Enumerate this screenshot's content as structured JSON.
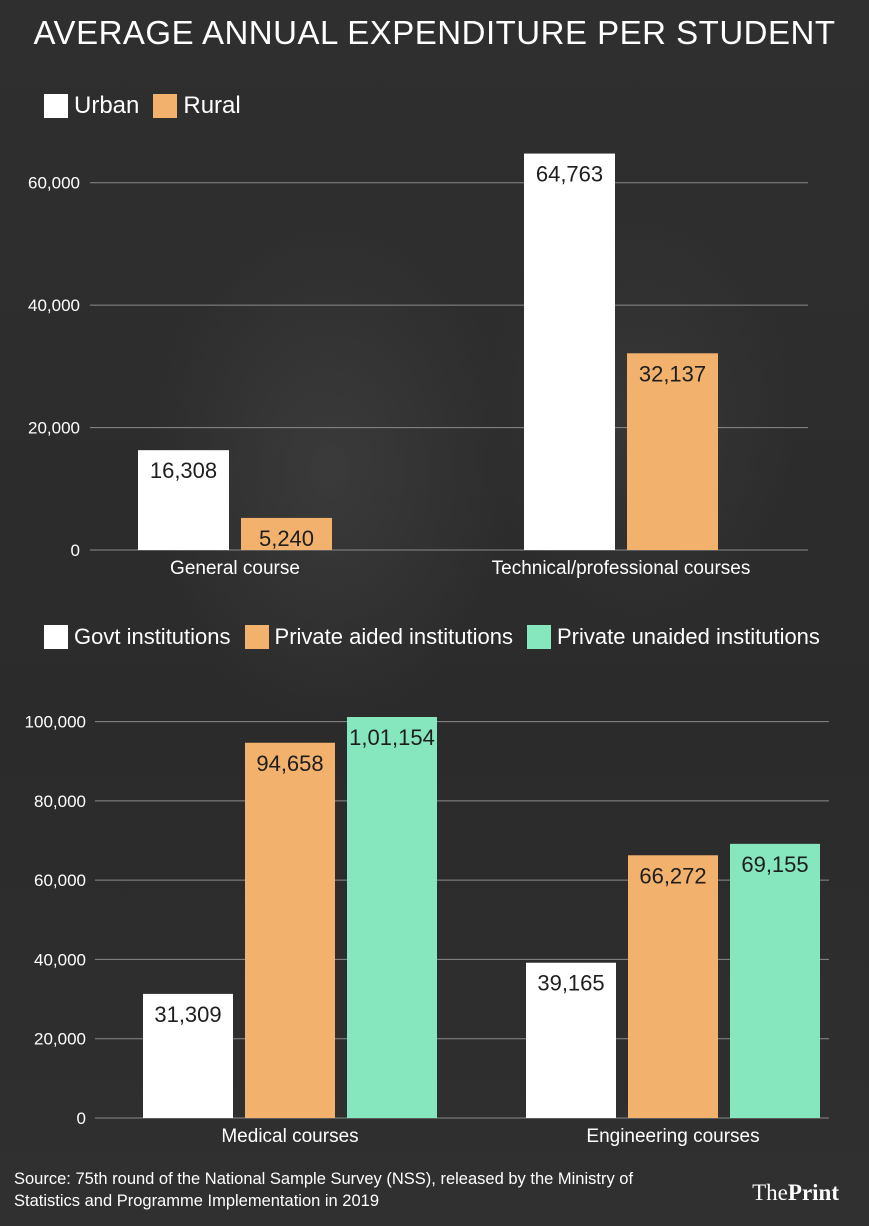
{
  "title": "AVERAGE ANNUAL EXPENDITURE PER STUDENT",
  "colors": {
    "white": "#ffffff",
    "orange": "#f2b26d",
    "green": "#86e6bd",
    "grid": "#8a8a8a"
  },
  "source": "Source: 75th round of the National Sample Survey (NSS), released by the Ministry of Statistics and Programme Implementation in 2019",
  "brand": {
    "light": "The",
    "bold": "Print"
  },
  "chart_data": [
    {
      "type": "bar",
      "categories": [
        "General course",
        "Technical/professional courses"
      ],
      "series": [
        {
          "name": "Urban",
          "color": "#ffffff",
          "values": [
            16308,
            64763
          ]
        },
        {
          "name": "Rural",
          "color": "#f2b26d",
          "values": [
            5240,
            32137
          ]
        }
      ],
      "data_labels": [
        [
          "16,308",
          "64,763"
        ],
        [
          "5,240",
          "32,137"
        ]
      ],
      "yticks": [
        0,
        20000,
        40000,
        60000
      ],
      "ytick_labels": [
        "0",
        "20,000",
        "40,000",
        "60,000"
      ],
      "ylim": [
        0,
        66000
      ],
      "legend": "top-left",
      "grid": true
    },
    {
      "type": "bar",
      "categories": [
        "Medical courses",
        "Engineering courses"
      ],
      "series": [
        {
          "name": "Govt institutions",
          "color": "#ffffff",
          "values": [
            31309,
            39165
          ]
        },
        {
          "name": "Private aided institutions",
          "color": "#f2b26d",
          "values": [
            94658,
            66272
          ]
        },
        {
          "name": "Private unaided institutions",
          "color": "#86e6bd",
          "values": [
            101154,
            69155
          ]
        }
      ],
      "data_labels": [
        [
          "31,309",
          "39,165"
        ],
        [
          "94,658",
          "66,272"
        ],
        [
          "1,01,154",
          "69,155"
        ]
      ],
      "yticks": [
        0,
        20000,
        40000,
        60000,
        80000,
        100000
      ],
      "ytick_labels": [
        "0",
        "20,000",
        "40,000",
        "60,000",
        "80,000",
        "100,000"
      ],
      "ylim": [
        0,
        101154
      ],
      "legend": "top-left",
      "grid": true
    }
  ]
}
